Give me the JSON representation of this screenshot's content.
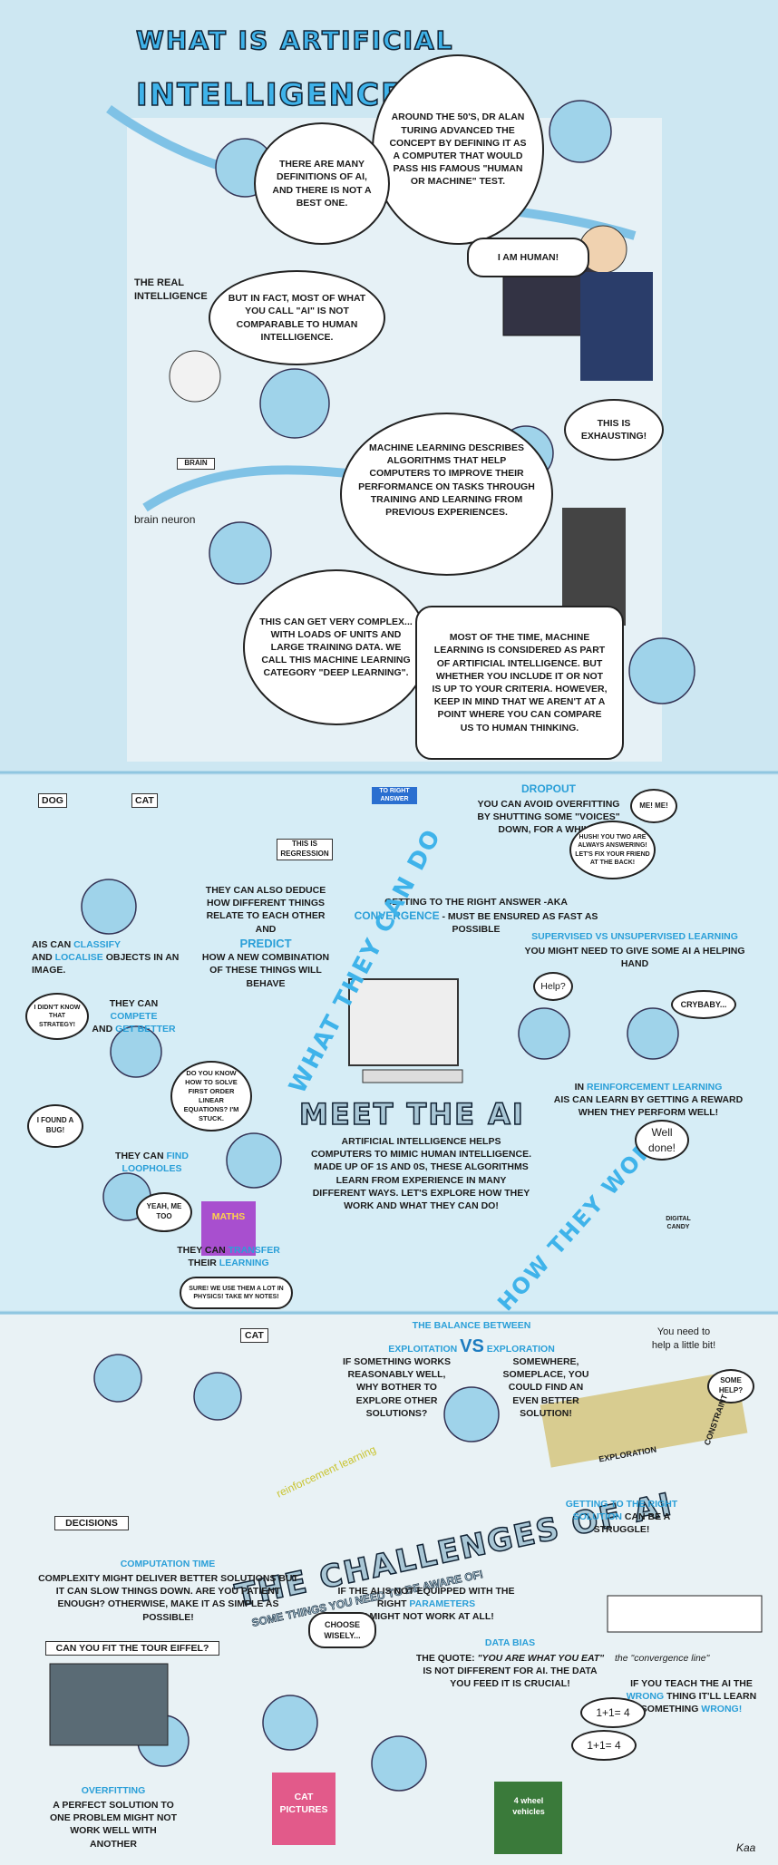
{
  "intro": {
    "title_line1": "WHAT IS ARTIFICIAL",
    "title_line2": "INTELLIGENCE?",
    "turing": "AROUND THE 50'S, DR ALAN TURING ADVANCED THE CONCEPT BY DEFINING IT AS A COMPUTER THAT WOULD PASS HIS FAMOUS \"HUMAN OR MACHINE\" TEST.",
    "definitions": "THERE ARE MANY DEFINITIONS OF AI, AND THERE IS NOT A BEST ONE.",
    "real_intelligence": "THE REAL INTELLIGENCE",
    "i_am_human": "I AM HUMAN!",
    "not_comparable": "BUT IN FACT, MOST OF WHAT YOU CALL \"AI\" IS NOT COMPARABLE TO HUMAN INTELLIGENCE.",
    "brain_badge": "BRAIN",
    "brain_neuron": "brain neuron",
    "ml_term": "MACHINE LEARNING",
    "ml_text": "DESCRIBES ALGORITHMS THAT HELP COMPUTERS TO IMPROVE THEIR PERFORMANCE ON TASKS THROUGH TRAINING AND LEARNING FROM PREVIOUS EXPERIENCES.",
    "exhausting": "THIS IS EXHAUSTING!",
    "deep_learning": "THIS CAN GET VERY COMPLEX... WITH LOADS OF UNITS AND LARGE TRAINING DATA. WE CALL THIS MACHINE LEARNING CATEGORY \"DEEP LEARNING\".",
    "most_of_the_time": "MOST OF THE TIME, MACHINE LEARNING IS CONSIDERED AS PART OF ARTIFICIAL INTELLIGENCE. BUT WHETHER YOU INCLUDE IT OR NOT IS UP TO YOUR CRITERIA. HOWEVER, KEEP IN MIND THAT WE AREN'T AT A POINT WHERE YOU CAN COMPARE US TO HUMAN THINKING."
  },
  "how": {
    "dog": "DOG",
    "cat": "CAT",
    "classify": [
      "AIS CAN",
      "CLASSIFY",
      "AND",
      "LOCALISE",
      "OBJECTS IN AN IMAGE."
    ],
    "regression": "THIS IS REGRESSION",
    "predict": [
      "THEY CAN ALSO DEDUCE HOW DIFFERENT THINGS RELATE TO EACH OTHER AND",
      "PREDICT",
      "HOW A NEW COMBINATION OF THESE THINGS WILL BEHAVE"
    ],
    "right_answer_sign": "TO RIGHT ANSWER",
    "convergence": [
      "GETTING TO THE RIGHT ANSWER -AKA",
      "CONVERGENCE",
      "- MUST BE ENSURED AS FAST AS POSSIBLE"
    ],
    "dropout_title": "DROPOUT",
    "dropout_text": "YOU CAN AVOID OVERFITTING BY SHUTTING SOME \"VOICES\" DOWN, FOR A WHILE!",
    "me_me": "ME! ME!",
    "hush": "HUSH! YOU TWO ARE ALWAYS ANSWERING! LET'S FIX YOUR FRIEND AT THE BACK!",
    "what_they_can_do": "WHAT THEY CAN DO",
    "strategy": "I DIDN'T KNOW THAT STRATEGY!",
    "compete": [
      "THEY CAN",
      "COMPETE",
      "AND",
      "GET BETTER"
    ],
    "found_bug": "I FOUND A BUG!",
    "equations": "DO YOU KNOW HOW TO SOLVE FIRST ORDER LINEAR EQUATIONS? I'M STUCK.",
    "supervised_title": "SUPERVISED VS UNSUPERVISED LEARNING",
    "supervised_text": "YOU MIGHT NEED TO GIVE SOME AI A HELPING HAND",
    "help": "Help?",
    "crybaby": "CRYBABY...",
    "meet_title": "MEET THE AI",
    "meet_text": "ARTIFICIAL INTELLIGENCE HELPS COMPUTERS TO MIMIC HUMAN INTELLIGENCE. MADE UP OF 1S AND 0S, THESE ALGORITHMS LEARN FROM EXPERIENCE IN MANY DIFFERENT WAYS. LET'S EXPLORE HOW THEY WORK AND WHAT THEY CAN DO!",
    "how_they_work": "HOW THEY WORK",
    "reinforcement": [
      "IN",
      "REINFORCEMENT LEARNING",
      "AIS CAN LEARN BY GETTING A REWARD WHEN THEY PERFORM WELL!"
    ],
    "well_done": "Well done!",
    "digital_candy": "DIGITAL CANDY",
    "loopholes": [
      "THEY CAN",
      "FIND",
      "LOOPHOLES"
    ],
    "yeah_me_too": "YEAH, ME TOO",
    "maths": "MATHS",
    "transfer": [
      "THEY CAN",
      "TRANSFER",
      "THEIR",
      "LEARNING"
    ],
    "physics": "SURE! WE USE THEM A LOT IN PHYSICS! TAKE MY NOTES!"
  },
  "challenges": {
    "cat": "CAT",
    "balance_title": "THE BALANCE BETWEEN",
    "exploitation": "EXPLOITATION",
    "vs": "VS",
    "exploration": "EXPLORATION",
    "exploitation_text": "IF SOMETHING WORKS REASONABLY WELL, WHY BOTHER TO EXPLORE OTHER SOLUTIONS?",
    "exploration_text": "SOMEWHERE, SOMEPLACE, YOU COULD FIND AN EVEN BETTER SOLUTION!",
    "need_help": "You need to help a little bit!",
    "some_help": "SOME HELP?",
    "constraint_label": "CONSTRAINT",
    "exploration_label": "EXPLORATION",
    "decisions": "DECISIONS",
    "rl_label": "reinforcement learning",
    "title": "THE CHALLENGES OF AI",
    "subtitle": "SOME THINGS YOU NEED TO BE AWARE OF!",
    "struggle": [
      "GETTING TO THE RIGHT SOLUTION",
      "CAN BE A STRUGGLE!"
    ],
    "computation_title": "COMPUTATION TIME",
    "computation_text": "COMPLEXITY MIGHT DELIVER BETTER SOLUTIONS BUT IT CAN SLOW THINGS DOWN. ARE YOU PATIENT ENOUGH? OTHERWISE, MAKE IT AS SIMPLE AS POSSIBLE!",
    "parameters": [
      "IF THE AI IS NOT EQUIPPED WITH THE RIGHT",
      "PARAMETERS",
      "IT MIGHT NOT WORK AT ALL!"
    ],
    "choose_wisely": "CHOOSE WISELY...",
    "bias_title": "DATA BIAS",
    "bias_text": [
      "THE QUOTE:",
      "\"YOU ARE WHAT YOU EAT\"",
      "IS NOT DIFFERENT FOR AI. THE DATA YOU FEED IT IS CRUCIAL!"
    ],
    "convergence_line": "the \"convergence line\"",
    "eiffel": "CAN YOU FIT THE TOUR EIFFEL?",
    "wrong": [
      "IF YOU TEACH THE AI THE",
      "WRONG",
      "THING IT'LL LEARN SOMETHING",
      "WRONG!"
    ],
    "sum_1": "1+1= 4",
    "sum_2": "1+1= 4",
    "overfitting_title": "OVERFITTING",
    "overfitting_text": "A PERFECT SOLUTION TO ONE PROBLEM MIGHT NOT WORK WELL WITH ANOTHER",
    "cat_pictures": "CAT PICTURES",
    "vehicles": "4 wheel vehicles",
    "signature": "Kaa"
  }
}
